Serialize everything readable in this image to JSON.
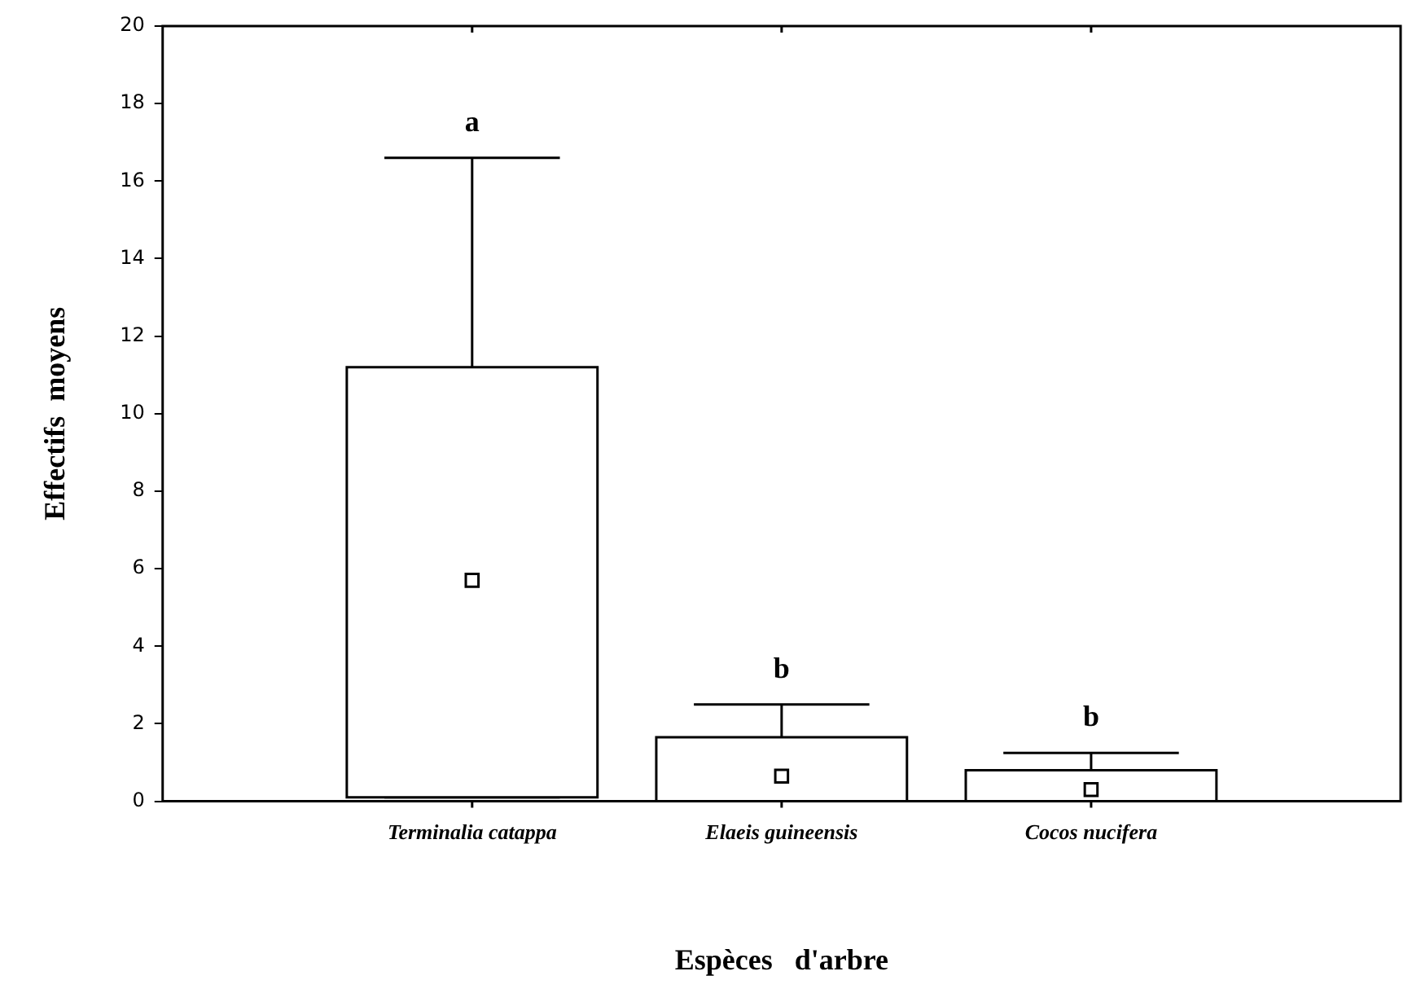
{
  "chart_data": {
    "type": "box",
    "xlabel": "Espèces   d'arbre",
    "ylabel": "Effectifs  moyens",
    "categories": [
      "Terminalia catappa",
      "Elaeis guineensis",
      "Cocos nucifera"
    ],
    "boxes": [
      {
        "low": 0.1,
        "q1": 0.1,
        "median": 5.7,
        "q3": 11.2,
        "high": 16.6
      },
      {
        "low": 0,
        "q1": 0,
        "median": 0.65,
        "q3": 1.65,
        "high": 2.5
      },
      {
        "low": 0,
        "q1": 0,
        "median": 0.3,
        "q3": 0.8,
        "high": 1.25
      }
    ],
    "ylim": [
      0,
      20
    ],
    "yticks": [
      0,
      2,
      4,
      6,
      8,
      10,
      12,
      14,
      16,
      18,
      20
    ],
    "annotations": [
      "a",
      "b",
      "b"
    ]
  }
}
